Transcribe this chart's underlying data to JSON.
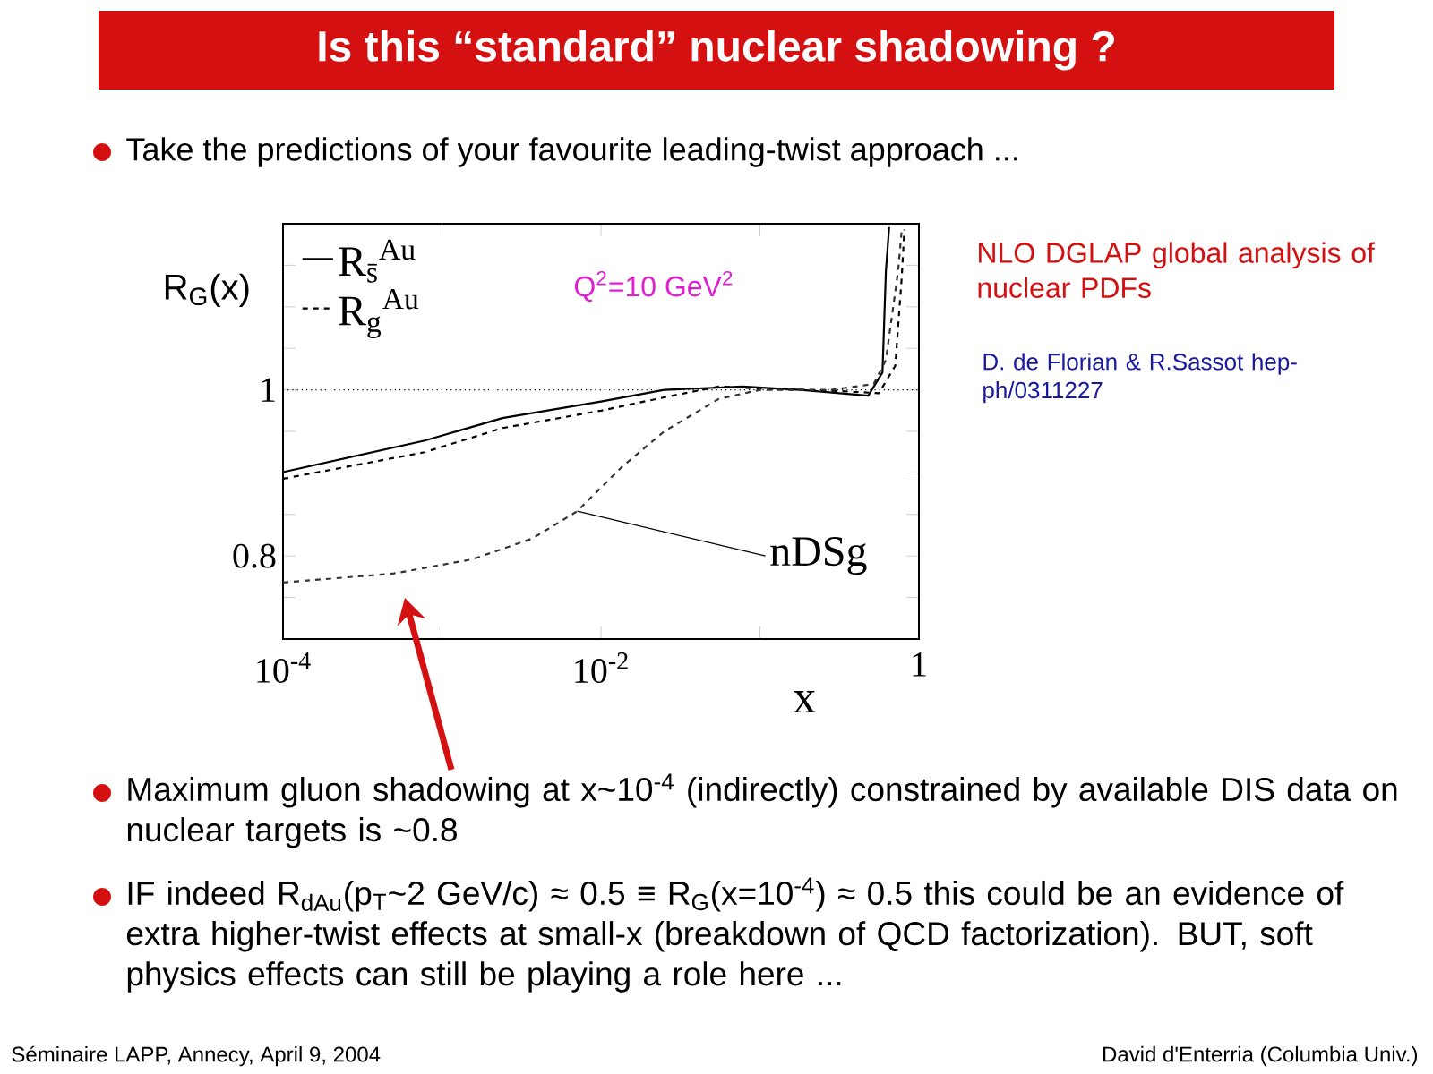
{
  "chart_data": {
    "type": "line",
    "title": "Is this “standard” nuclear shadowing ?",
    "xlabel": "x",
    "ylabel": "R$_{G}$(x)",
    "log": "x",
    "grid": false,
    "legend": "top left",
    "xlim": [
      0.0001,
      1
    ],
    "ylim": [
      0.7,
      1.2
    ],
    "xticks": [
      {
        "value": 0.0001,
        "label": "10$^{-4}$"
      },
      {
        "value": 0.001,
        "label": null
      },
      {
        "value": 0.01,
        "label": "10$^{-2}$"
      },
      {
        "value": 0.1,
        "label": null
      },
      1
    ],
    "yticks": [
      {
        "value": 0.75,
        "label": null
      },
      0.8,
      {
        "value": 0.85,
        "label": null
      },
      {
        "value": 0.9,
        "label": null
      },
      {
        "value": 0.95,
        "label": null
      },
      1,
      {
        "value": 1.05,
        "label": null
      },
      {
        "value": 1.1,
        "label": null
      },
      {
        "value": 1.15,
        "label": null
      }
    ],
    "ref_lines": [
      {
        "axis": "y",
        "value": 1,
        "line_style": "dotted",
        "color": "#000000"
      }
    ],
    "series": [
      {
        "name": "R$_{s̄}$$^{Au}$",
        "color": "#000000",
        "line_style": "solid",
        "x": [
          0.0001,
          0.00078,
          0.0024,
          0.01,
          0.025,
          0.078,
          0.18,
          0.48,
          0.59,
          0.62,
          0.65
        ],
        "values": [
          0.901,
          0.939,
          0.966,
          0.986,
          1.0,
          1.004,
          1.0,
          0.993,
          1.021,
          1.143,
          1.196
        ]
      },
      {
        "name": "R$_{g}$$^{Au}$",
        "color": "#000000",
        "line_style": "dashed",
        "x": [
          0.0001,
          0.00078,
          0.0024,
          0.01,
          0.025,
          0.055,
          0.12,
          0.28,
          0.56,
          0.71,
          0.78,
          0.81
        ],
        "values": [
          0.893,
          0.925,
          0.954,
          0.975,
          0.991,
          1.004,
          1.001,
          0.999,
          0.996,
          1.029,
          1.136,
          1.193
        ]
      },
      {
        "color": "#333333",
        "line_style": "dashed",
        "x": [
          0.0001,
          0.0005,
          0.00155,
          0.0037,
          0.0071,
          0.0135,
          0.025,
          0.055,
          0.1,
          0.28,
          0.52,
          0.62,
          0.74,
          0.78
        ],
        "values": [
          0.768,
          0.779,
          0.796,
          0.821,
          0.854,
          0.907,
          0.95,
          0.989,
          1.0,
          1.0,
          1.007,
          1.036,
          1.143,
          1.193
        ]
      }
    ],
    "annotations": [
      "Take the predictions of your favourite leading-twist approach ...",
      "NLO DGLAP global analysis of nuclear PDFs",
      "D. de Florian & R.Sassot hep-ph/0311227",
      "Maximum gluon shadowing at x~10$^{-4}$ (indirectly) constrained by available DIS data on nuclear targets is ~0.8",
      "IF indeed R$_{dAu}$(p$_{T}$~2 GeV/c) ≈ 0.5  ≡ R$_{G}$(x=10$^{-4}$) ≈ 0.5 this could be an evidence of extra higher-twist effects at small-x (breakdown of QCD factorization). BUT, soft physics effects can still be playing a role here ...",
      "Séminaire LAPP, Annecy, April 9, 2004",
      "David d'Enterria (Columbia Univ.)",
      "Q$^{2}$=10 GeV$^{2}$",
      {
        "text": "nDSg",
        "x": 0.0071,
        "y": 0.854
      }
    ]
  }
}
